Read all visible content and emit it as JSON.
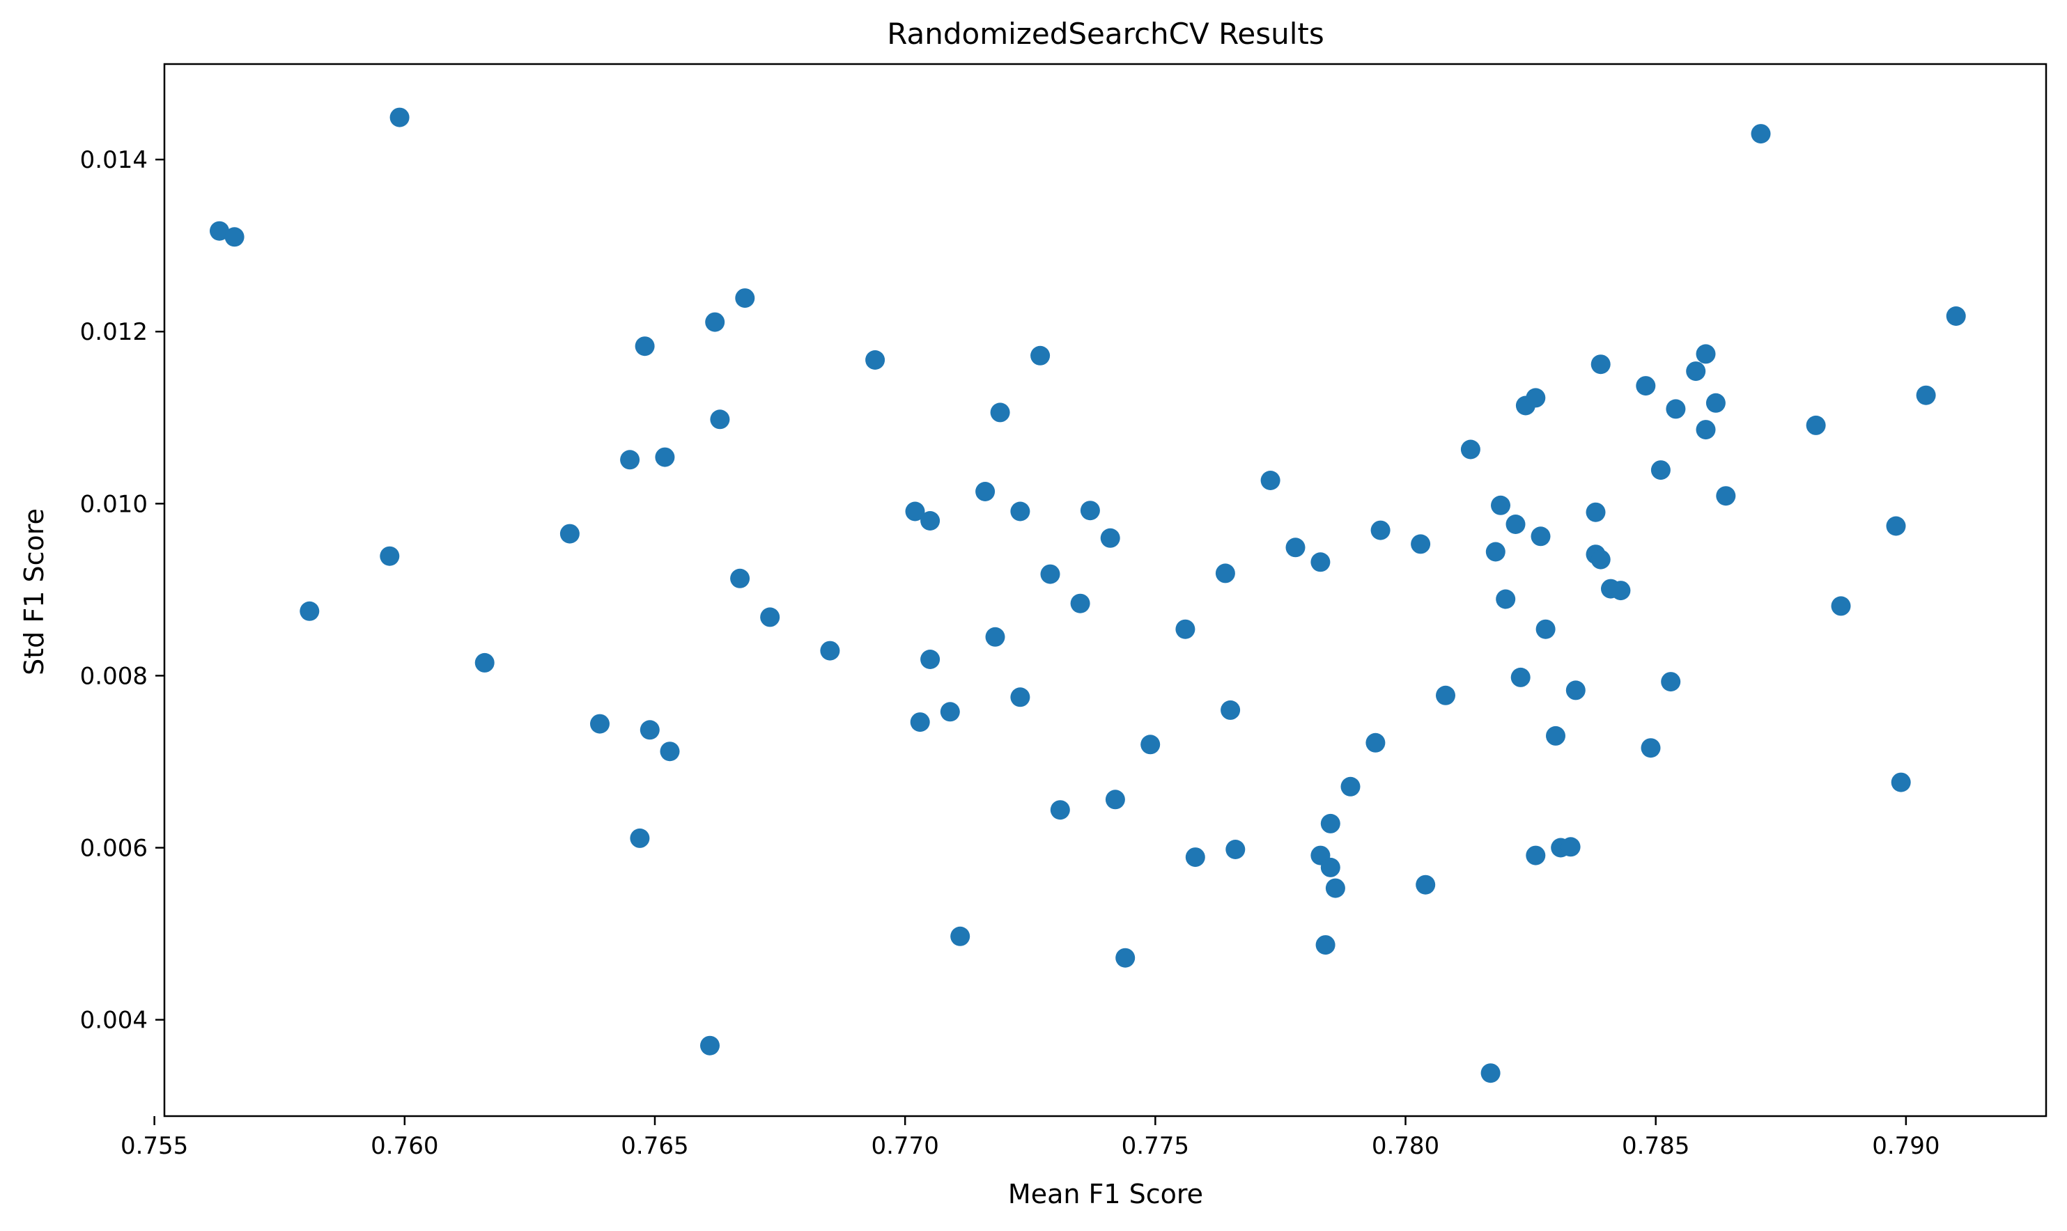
{
  "chart_data": {
    "type": "scatter",
    "title": "RandomizedSearchCV Results",
    "xlabel": "Mean F1 Score",
    "ylabel": "Std F1 Score",
    "xlim": [
      0.7552,
      0.7928
    ],
    "ylim": [
      0.00288,
      0.01511
    ],
    "grid": false,
    "legend": "none",
    "marker_color": "#1f77b4",
    "x_ticks": [
      {
        "value": 0.755,
        "label": "0.755"
      },
      {
        "value": 0.76,
        "label": "0.760"
      },
      {
        "value": 0.765,
        "label": "0.765"
      },
      {
        "value": 0.77,
        "label": "0.770"
      },
      {
        "value": 0.775,
        "label": "0.775"
      },
      {
        "value": 0.78,
        "label": "0.780"
      },
      {
        "value": 0.785,
        "label": "0.785"
      },
      {
        "value": 0.79,
        "label": "0.790"
      }
    ],
    "y_ticks": [
      {
        "value": 0.004,
        "label": "0.004"
      },
      {
        "value": 0.006,
        "label": "0.006"
      },
      {
        "value": 0.008,
        "label": "0.008"
      },
      {
        "value": 0.01,
        "label": "0.010"
      },
      {
        "value": 0.012,
        "label": "0.012"
      },
      {
        "value": 0.014,
        "label": "0.014"
      }
    ],
    "points": [
      [
        0.7563,
        0.01317
      ],
      [
        0.7566,
        0.0131
      ],
      [
        0.7581,
        0.00875
      ],
      [
        0.7597,
        0.00939
      ],
      [
        0.7599,
        0.01449
      ],
      [
        0.7616,
        0.00815
      ],
      [
        0.7633,
        0.00965
      ],
      [
        0.7639,
        0.00744
      ],
      [
        0.7645,
        0.01051
      ],
      [
        0.7647,
        0.00611
      ],
      [
        0.7648,
        0.01183
      ],
      [
        0.7649,
        0.00737
      ],
      [
        0.7652,
        0.01054
      ],
      [
        0.7653,
        0.00712
      ],
      [
        0.7661,
        0.0037
      ],
      [
        0.7662,
        0.01211
      ],
      [
        0.7663,
        0.01098
      ],
      [
        0.7667,
        0.00913
      ],
      [
        0.7668,
        0.01239
      ],
      [
        0.7673,
        0.00868
      ],
      [
        0.7685,
        0.00829
      ],
      [
        0.7694,
        0.01167
      ],
      [
        0.7702,
        0.00991
      ],
      [
        0.7703,
        0.00746
      ],
      [
        0.7705,
        0.00819
      ],
      [
        0.7705,
        0.0098
      ],
      [
        0.7709,
        0.00758
      ],
      [
        0.7711,
        0.00497
      ],
      [
        0.7716,
        0.01014
      ],
      [
        0.7718,
        0.00845
      ],
      [
        0.7719,
        0.01106
      ],
      [
        0.7723,
        0.00775
      ],
      [
        0.7723,
        0.00991
      ],
      [
        0.7727,
        0.01172
      ],
      [
        0.7729,
        0.00918
      ],
      [
        0.7731,
        0.00644
      ],
      [
        0.7735,
        0.00884
      ],
      [
        0.7737,
        0.00992
      ],
      [
        0.7741,
        0.0096
      ],
      [
        0.7742,
        0.00656
      ],
      [
        0.7744,
        0.00472
      ],
      [
        0.7749,
        0.0072
      ],
      [
        0.7756,
        0.00854
      ],
      [
        0.7758,
        0.00589
      ],
      [
        0.7764,
        0.00919
      ],
      [
        0.7765,
        0.0076
      ],
      [
        0.7766,
        0.00598
      ],
      [
        0.7773,
        0.01027
      ],
      [
        0.7778,
        0.00949
      ],
      [
        0.7783,
        0.00591
      ],
      [
        0.7783,
        0.00932
      ],
      [
        0.7784,
        0.00487
      ],
      [
        0.7785,
        0.00628
      ],
      [
        0.7785,
        0.00577
      ],
      [
        0.7786,
        0.00553
      ],
      [
        0.7789,
        0.00671
      ],
      [
        0.7794,
        0.00722
      ],
      [
        0.7795,
        0.00969
      ],
      [
        0.7803,
        0.00953
      ],
      [
        0.7804,
        0.00557
      ],
      [
        0.7808,
        0.00777
      ],
      [
        0.7813,
        0.01063
      ],
      [
        0.7817,
        0.00338
      ],
      [
        0.7818,
        0.00944
      ],
      [
        0.7819,
        0.00998
      ],
      [
        0.782,
        0.00889
      ],
      [
        0.7822,
        0.00976
      ],
      [
        0.7823,
        0.00798
      ],
      [
        0.7824,
        0.01114
      ],
      [
        0.7826,
        0.01123
      ],
      [
        0.7826,
        0.00591
      ],
      [
        0.7827,
        0.00962
      ],
      [
        0.7828,
        0.00854
      ],
      [
        0.783,
        0.0073
      ],
      [
        0.7831,
        0.006
      ],
      [
        0.7833,
        0.00601
      ],
      [
        0.7834,
        0.00783
      ],
      [
        0.7838,
        0.00941
      ],
      [
        0.7838,
        0.0099
      ],
      [
        0.7839,
        0.00935
      ],
      [
        0.7839,
        0.01162
      ],
      [
        0.7841,
        0.00901
      ],
      [
        0.7843,
        0.00899
      ],
      [
        0.7848,
        0.01137
      ],
      [
        0.7849,
        0.00716
      ],
      [
        0.7851,
        0.01039
      ],
      [
        0.7853,
        0.00793
      ],
      [
        0.7854,
        0.0111
      ],
      [
        0.7858,
        0.01154
      ],
      [
        0.786,
        0.01174
      ],
      [
        0.786,
        0.01086
      ],
      [
        0.7862,
        0.01117
      ],
      [
        0.7864,
        0.01009
      ],
      [
        0.7871,
        0.0143
      ],
      [
        0.7882,
        0.01091
      ],
      [
        0.7887,
        0.00881
      ],
      [
        0.7898,
        0.00974
      ],
      [
        0.7899,
        0.00676
      ],
      [
        0.7904,
        0.01126
      ],
      [
        0.791,
        0.01218
      ]
    ]
  }
}
